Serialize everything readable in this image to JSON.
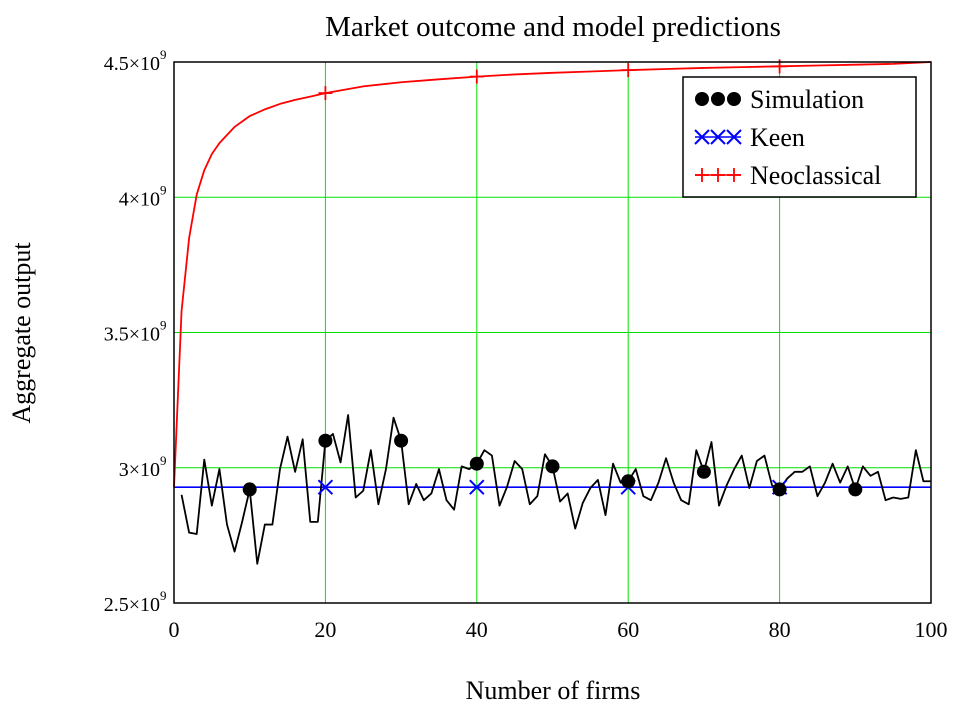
{
  "chart_data": {
    "type": "line",
    "title": "Market outcome and model predictions",
    "xlabel": "Number of firms",
    "ylabel": "Aggregate output",
    "xlim": [
      0,
      100
    ],
    "ylim": [
      2500000000,
      4500000000
    ],
    "grid": true,
    "grid_color": "#00e000",
    "legend_position": "top-right",
    "x_ticks": [
      0,
      20,
      40,
      60,
      80,
      100
    ],
    "x_tick_labels": [
      "0",
      "20",
      "40",
      "60",
      "80",
      "100"
    ],
    "y_ticks": [
      2500000000,
      3000000000,
      3500000000,
      4000000000,
      4500000000
    ],
    "y_tick_labels": [
      {
        "mantissa": "2.5×10",
        "exponent": "9"
      },
      {
        "mantissa": "3×10",
        "exponent": "9"
      },
      {
        "mantissa": "3.5×10",
        "exponent": "9"
      },
      {
        "mantissa": "4×10",
        "exponent": "9"
      },
      {
        "mantissa": "4.5×10",
        "exponent": "9"
      }
    ],
    "series": [
      {
        "name": "Simulation",
        "color": "#000000",
        "marker": "filled-circle",
        "marker_x": [
          10,
          20,
          30,
          40,
          50,
          60,
          70,
          80,
          90
        ],
        "x": [
          1,
          2,
          3,
          4,
          5,
          6,
          7,
          8,
          9,
          10,
          11,
          12,
          13,
          14,
          15,
          16,
          17,
          18,
          19,
          20,
          21,
          22,
          23,
          24,
          25,
          26,
          27,
          28,
          29,
          30,
          31,
          32,
          33,
          34,
          35,
          36,
          37,
          38,
          39,
          40,
          41,
          42,
          43,
          44,
          45,
          46,
          47,
          48,
          49,
          50,
          51,
          52,
          53,
          54,
          55,
          56,
          57,
          58,
          59,
          60,
          61,
          62,
          63,
          64,
          65,
          66,
          67,
          68,
          69,
          70,
          71,
          72,
          73,
          74,
          75,
          76,
          77,
          78,
          79,
          80,
          81,
          82,
          83,
          84,
          85,
          86,
          87,
          88,
          89,
          90,
          91,
          92,
          93,
          94,
          95,
          96,
          97,
          98,
          99,
          100
        ],
        "y": [
          2900000000,
          2760000000,
          2755000000,
          3030000000,
          2860000000,
          2995000000,
          2790000000,
          2690000000,
          2800000000,
          2920000000,
          2645000000,
          2790000000,
          2790000000,
          2995000000,
          3115000000,
          2985000000,
          3105000000,
          2800000000,
          2800000000,
          3100000000,
          3125000000,
          3020000000,
          3195000000,
          2890000000,
          2915000000,
          3065000000,
          2865000000,
          2995000000,
          3185000000,
          3100000000,
          2865000000,
          2940000000,
          2880000000,
          2905000000,
          2995000000,
          2880000000,
          2845000000,
          3005000000,
          2995000000,
          3015000000,
          3065000000,
          3045000000,
          2860000000,
          2930000000,
          3025000000,
          2995000000,
          2865000000,
          2895000000,
          3050000000,
          3005000000,
          2875000000,
          2905000000,
          2775000000,
          2870000000,
          2925000000,
          2955000000,
          2825000000,
          3015000000,
          2945000000,
          2950000000,
          2995000000,
          2895000000,
          2880000000,
          2945000000,
          3035000000,
          2945000000,
          2880000000,
          2865000000,
          3065000000,
          2985000000,
          3095000000,
          2860000000,
          2935000000,
          2995000000,
          3045000000,
          2925000000,
          3025000000,
          3045000000,
          2935000000,
          2920000000,
          2960000000,
          2985000000,
          2985000000,
          3005000000,
          2895000000,
          2945000000,
          3015000000,
          2945000000,
          3005000000,
          2920000000,
          3005000000,
          2970000000,
          2985000000,
          2880000000,
          2890000000,
          2885000000,
          2890000000,
          3065000000,
          2950000000,
          2950000000
        ]
      },
      {
        "name": "Keen",
        "color": "#0000ff",
        "marker": "x",
        "marker_x": [
          20,
          40,
          60,
          80
        ],
        "x": [
          0,
          100
        ],
        "y": [
          2928000000,
          2928000000
        ]
      },
      {
        "name": "Neoclassical",
        "color": "#ff0000",
        "marker": "plus",
        "marker_x": [
          20,
          40,
          60,
          80
        ],
        "x": [
          0,
          1,
          2,
          3,
          4,
          5,
          6,
          7,
          8,
          9,
          10,
          12,
          14,
          16,
          18,
          20,
          25,
          30,
          35,
          40,
          45,
          50,
          55,
          60,
          65,
          70,
          75,
          80,
          85,
          90,
          95,
          100
        ],
        "y": [
          2928000000,
          3580000000,
          3850000000,
          4010000000,
          4100000000,
          4160000000,
          4200000000,
          4230000000,
          4260000000,
          4280000000,
          4300000000,
          4325000000,
          4345000000,
          4360000000,
          4372000000,
          4385000000,
          4410000000,
          4425000000,
          4436000000,
          4446000000,
          4454000000,
          4460000000,
          4465000000,
          4470000000,
          4474000000,
          4478000000,
          4481000000,
          4484000000,
          4487000000,
          4490000000,
          4493000000,
          4500000000
        ]
      }
    ]
  }
}
